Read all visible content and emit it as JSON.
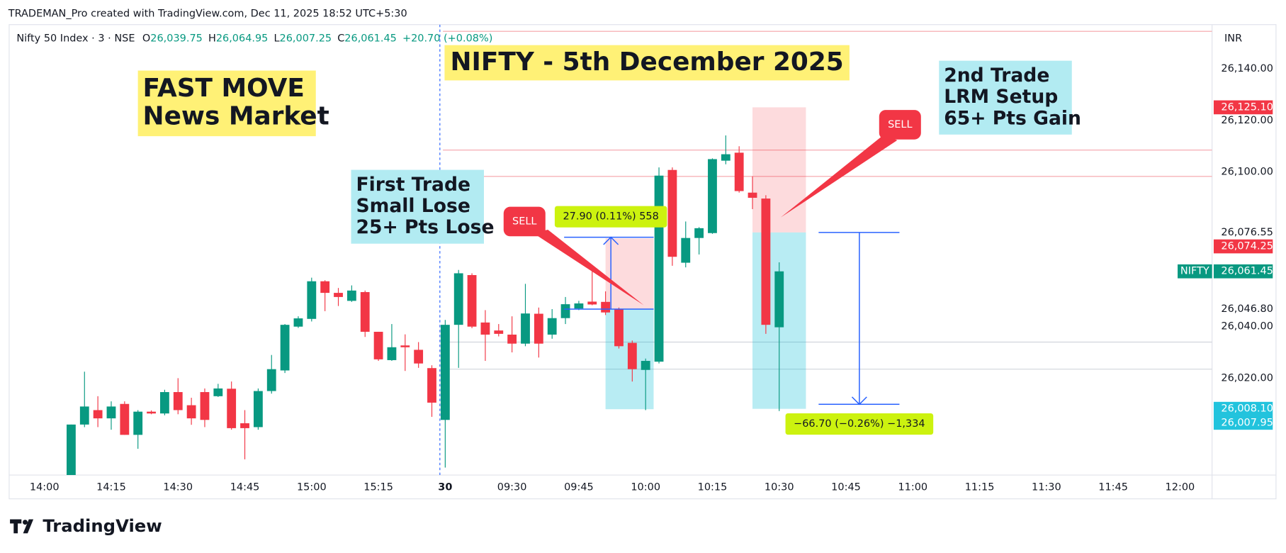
{
  "chart_data": {
    "type": "candlestick",
    "credit": "TRADEMAN_Pro created with TradingView.com, Dec 11, 2025 18:52 UTC+5:30",
    "brand": "TradingView",
    "symbol": "Nifty 50 Index · 3 · NSE",
    "ohlc_legend": [
      {
        "key": "O",
        "value": "26,039.75"
      },
      {
        "key": "H",
        "value": "26,064.95"
      },
      {
        "key": "L",
        "value": "26,007.25"
      },
      {
        "key": "C",
        "value": "26,061.45"
      }
    ],
    "change": "+20.70 (+0.08%)",
    "currency": "INR",
    "title": "NIFTY - 5th December 2025",
    "up_color": "#089981",
    "down_color": "#f23645",
    "xlim": [
      -2.64,
      87.4
    ],
    "xticks": [
      {
        "value": 0,
        "label": "14:00"
      },
      {
        "value": 5,
        "label": "14:15"
      },
      {
        "value": 10,
        "label": "14:30"
      },
      {
        "value": 15,
        "label": "14:45"
      },
      {
        "value": 20,
        "label": "15:00"
      },
      {
        "value": 25,
        "label": "15:15"
      },
      30,
      {
        "value": 35,
        "label": "09:30"
      },
      {
        "value": 40,
        "label": "09:45"
      },
      {
        "value": 45,
        "label": "10:00"
      },
      {
        "value": 50,
        "label": "10:15"
      },
      {
        "value": 55,
        "label": "10:30"
      },
      {
        "value": 60,
        "label": "10:45"
      },
      {
        "value": 65,
        "label": "11:00"
      },
      {
        "value": 70,
        "label": "11:15"
      },
      {
        "value": 75,
        "label": "11:30"
      },
      {
        "value": 80,
        "label": "11:45"
      },
      {
        "value": 85,
        "label": "12:00"
      }
    ],
    "bold_xticks": [
      30
    ],
    "session_break": 29.6,
    "ylim": [
      25982.4,
      26157.2
    ],
    "yticks": [
      {
        "value": 26140,
        "label": "26,140.00"
      },
      {
        "value": 26120,
        "label": "26,120.00"
      },
      {
        "value": 26100,
        "label": "26,100.00"
      },
      {
        "value": 26040,
        "label": "26,040.00"
      },
      {
        "value": 26020,
        "label": "26,020.00"
      }
    ],
    "candles": [
      {
        "x": 2,
        "open": 25980,
        "high": 26002,
        "low": 25975,
        "close": 26002
      },
      {
        "x": 3,
        "open": 26002,
        "high": 26022.5,
        "low": 26001,
        "close": 26009
      },
      {
        "x": 4,
        "open": 26007.6,
        "high": 26013,
        "low": 26001,
        "close": 26004.4
      },
      {
        "x": 5,
        "open": 26004.4,
        "high": 26011,
        "low": 26000,
        "close": 26009
      },
      {
        "x": 6,
        "open": 26010,
        "high": 26011,
        "low": 25998,
        "close": 25998
      },
      {
        "x": 7,
        "open": 25998,
        "high": 26007.6,
        "low": 25992.6,
        "close": 26007
      },
      {
        "x": 8,
        "open": 26007,
        "high": 26007.5,
        "low": 26006,
        "close": 26006.3
      },
      {
        "x": 9,
        "open": 26006.3,
        "high": 26015.5,
        "low": 26005.6,
        "close": 26014.6
      },
      {
        "x": 10,
        "open": 26014.6,
        "high": 26020,
        "low": 26006,
        "close": 26007.6
      },
      {
        "x": 11,
        "open": 26009.5,
        "high": 26012.4,
        "low": 26001.9,
        "close": 26004.4
      },
      {
        "x": 12,
        "open": 26014.6,
        "high": 26016,
        "low": 26001,
        "close": 26003.8
      },
      {
        "x": 13,
        "open": 26013,
        "high": 26017.8,
        "low": 26012.7,
        "close": 26016
      },
      {
        "x": 14,
        "open": 26015.9,
        "high": 26018.7,
        "low": 26000,
        "close": 26000.6
      },
      {
        "x": 15,
        "open": 26002.5,
        "high": 26007.6,
        "low": 25988.5,
        "close": 26000.6
      },
      {
        "x": 16,
        "open": 26001,
        "high": 26016,
        "low": 26000,
        "close": 26015
      },
      {
        "x": 17,
        "open": 26015,
        "high": 26029,
        "low": 26014,
        "close": 26023.5
      },
      {
        "x": 18,
        "open": 26023,
        "high": 26041,
        "low": 26022,
        "close": 26040.7
      },
      {
        "x": 19,
        "open": 26040,
        "high": 26044,
        "low": 26039.5,
        "close": 26043.2
      },
      {
        "x": 20,
        "open": 26043,
        "high": 26059,
        "low": 26042,
        "close": 26057.6
      },
      {
        "x": 21,
        "open": 26057.6,
        "high": 26058,
        "low": 26046,
        "close": 26053.1
      },
      {
        "x": 22,
        "open": 26053.1,
        "high": 26055,
        "low": 26048,
        "close": 26051.5
      },
      {
        "x": 23,
        "open": 26050,
        "high": 26056,
        "low": 26049.6,
        "close": 26054
      },
      {
        "x": 24,
        "open": 26053.4,
        "high": 26054,
        "low": 26036,
        "close": 26038
      },
      {
        "x": 25,
        "open": 26038,
        "high": 26038,
        "low": 26026.7,
        "close": 26027.3
      },
      {
        "x": 26,
        "open": 26027,
        "high": 26041,
        "low": 26026.7,
        "close": 26032
      },
      {
        "x": 27,
        "open": 26032.7,
        "high": 26037,
        "low": 26022.8,
        "close": 26032
      },
      {
        "x": 28,
        "open": 26031,
        "high": 26034,
        "low": 26024,
        "close": 26025.7
      },
      {
        "x": 29,
        "open": 26023.9,
        "high": 26025,
        "low": 26005,
        "close": 26010.5
      },
      {
        "x": 30,
        "open": 26003.8,
        "high": 26042.6,
        "low": 25985.3,
        "close": 26040.7
      },
      {
        "x": 31,
        "open": 26040.7,
        "high": 26062,
        "low": 26024,
        "close": 26060.7
      },
      {
        "x": 32,
        "open": 26060,
        "high": 26060.7,
        "low": 26039.4,
        "close": 26040
      },
      {
        "x": 33,
        "open": 26041.6,
        "high": 26046.4,
        "low": 26026.7,
        "close": 26036.9
      },
      {
        "x": 34,
        "open": 26038.5,
        "high": 26041,
        "low": 26036.2,
        "close": 26037.2
      },
      {
        "x": 35,
        "open": 26036.9,
        "high": 26044,
        "low": 26030,
        "close": 26033.4
      },
      {
        "x": 36,
        "open": 26033.4,
        "high": 26056.6,
        "low": 26032.4,
        "close": 26045.1
      },
      {
        "x": 37,
        "open": 26045,
        "high": 26047.4,
        "low": 26028,
        "close": 26033.4
      },
      {
        "x": 38,
        "open": 26036.9,
        "high": 26046.8,
        "low": 26035.3,
        "close": 26043.3
      },
      {
        "x": 39,
        "open": 26043.3,
        "high": 26051.5,
        "low": 26041,
        "close": 26048.7
      },
      {
        "x": 40,
        "open": 26047,
        "high": 26050,
        "low": 26046.4,
        "close": 26049
      },
      {
        "x": 41,
        "open": 26049.7,
        "high": 26061.7,
        "low": 26048.3,
        "close": 26048.6
      },
      {
        "x": 42,
        "open": 26049.6,
        "high": 26053.7,
        "low": 26044.5,
        "close": 26045.5
      },
      {
        "x": 43,
        "open": 26046.7,
        "high": 26047.4,
        "low": 26031.5,
        "close": 26032.4
      },
      {
        "x": 44,
        "open": 26033.7,
        "high": 26034.6,
        "low": 26018.7,
        "close": 26023.5
      },
      {
        "x": 45,
        "open": 26023.2,
        "high": 26027.6,
        "low": 26007.6,
        "close": 26026.7
      },
      {
        "x": 46,
        "open": 26026.4,
        "high": 26101.8,
        "low": 26025.7,
        "close": 26098.6
      },
      {
        "x": 47,
        "open": 26100.8,
        "high": 26101.8,
        "low": 26063.6,
        "close": 26067.1
      },
      {
        "x": 48,
        "open": 26064.8,
        "high": 26080.8,
        "low": 26063,
        "close": 26074.4
      },
      {
        "x": 49,
        "open": 26074.4,
        "high": 26078.6,
        "low": 26068,
        "close": 26078.2
      },
      {
        "x": 50,
        "open": 26076.3,
        "high": 26105.3,
        "low": 26076,
        "close": 26105
      },
      {
        "x": 51,
        "open": 26104.4,
        "high": 26114.2,
        "low": 26103,
        "close": 26106.9
      },
      {
        "x": 52,
        "open": 26107.5,
        "high": 26110,
        "low": 26092,
        "close": 26092.6
      },
      {
        "x": 53,
        "open": 26092,
        "high": 26098.3,
        "low": 26085.6,
        "close": 26090
      },
      {
        "x": 54,
        "open": 26089.7,
        "high": 26091,
        "low": 26037.2,
        "close": 26040.7
      },
      {
        "x": 55,
        "open": 26039.75,
        "high": 26064.95,
        "low": 26007.25,
        "close": 26061.45
      }
    ],
    "hlines": [
      {
        "value": 26154.6,
        "color": "#f5a3a9"
      },
      {
        "value": 26108.5,
        "color": "#f5a3a9"
      },
      {
        "value": 26098.3,
        "color": "#f5a3a9"
      },
      {
        "value": 26034,
        "color": "#d1d4dc"
      },
      {
        "value": 26023.5,
        "color": "#d1d4dc"
      }
    ],
    "positions": [
      {
        "x": [
          42,
          45.6
        ],
        "entry": 26046.8,
        "stop": 26074.25,
        "target": 26007.95
      },
      {
        "x": [
          53,
          57
        ],
        "entry": 26076.55,
        "stop": 26125.1,
        "target": 26008.1
      }
    ],
    "measures": [
      {
        "x": 42.4,
        "span": [
          38.9,
          45.6
        ],
        "from": 26046.8,
        "to": 26074.7,
        "label": "27.90 (0.11%) 558"
      },
      {
        "x": 61,
        "span": [
          57.95,
          64
        ],
        "from": 26076.55,
        "to": 26009.85,
        "label": "−66.70 (−0.26%) −1,334"
      }
    ],
    "price_tags": [
      {
        "value": 26125.1,
        "label": "26,125.10",
        "color": "#f23645"
      },
      {
        "value": 26076.55,
        "label": "26,076.55"
      },
      {
        "value": 26074.25,
        "label": "26,074.25",
        "color": "#f23645"
      },
      {
        "value": 26061.45,
        "label": "26,061.45",
        "color": "#089981",
        "name": "NIFTY"
      },
      {
        "value": 26046.8,
        "label": "26,046.80"
      },
      {
        "value": 26008.1,
        "label": "26,008.10",
        "color": "#22c3dd"
      },
      {
        "value": 26007.95,
        "label": "26,007.95",
        "color": "#22c3dd"
      }
    ],
    "notes": [
      {
        "lines": [
          "FAST MOVE",
          "News Market"
        ],
        "color": "#fff176"
      },
      {
        "lines": [
          "First Trade",
          "Small Lose",
          "25+ Pts Lose"
        ],
        "color": "#b2ebf2"
      },
      {
        "lines": [
          "2nd Trade",
          "LRM Setup",
          "65+ Pts Gain"
        ],
        "color": "#b2ebf2"
      }
    ],
    "title_color": "#fff176",
    "callouts": [
      {
        "text": "SELL"
      },
      {
        "text": "SELL"
      }
    ]
  }
}
